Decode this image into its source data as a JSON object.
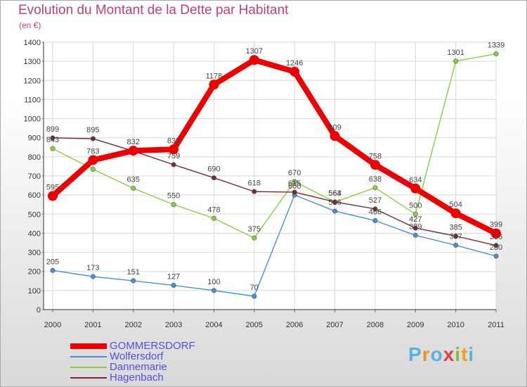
{
  "chart_data": {
    "type": "line",
    "title": "Evolution du Montant de la Dette par Habitant",
    "subtitle": "(en €)",
    "categories": [
      "2000",
      "2001",
      "2002",
      "2003",
      "2004",
      "2005",
      "2006",
      "2007",
      "2008",
      "2009",
      "2010",
      "2011"
    ],
    "ylim": [
      0,
      1400
    ],
    "yticks": [
      0,
      100,
      200,
      300,
      400,
      500,
      600,
      700,
      800,
      900,
      1000,
      1100,
      1200,
      1300,
      1400
    ],
    "grid": true,
    "legend_position": "bottom-left",
    "series": [
      {
        "name": "GOMMERSDORF",
        "color": "#ee0000",
        "values": [
          595,
          783,
          832,
          839,
          1178,
          1307,
          1246,
          909,
          758,
          634,
          504,
          399
        ]
      },
      {
        "name": "Wolfersdorf",
        "color": "#4a90d0",
        "values": [
          205,
          173,
          151,
          127,
          100,
          70,
          600,
          516,
          466,
          389,
          337,
          280
        ]
      },
      {
        "name": "Dannemarie",
        "color": "#88d040",
        "values": [
          843,
          735,
          635,
          550,
          478,
          375,
          670,
          563,
          638,
          500,
          1301,
          1339
        ]
      },
      {
        "name": "Hagenbach",
        "color": "#7a2830",
        "values": [
          899,
          895,
          830,
          759,
          690,
          618,
          615,
          564,
          527,
          427,
          385,
          336
        ]
      }
    ]
  },
  "labels": {
    "GOMMERSDORF": [
      "595",
      "783",
      "832",
      "839",
      "1178",
      "1307",
      "1246",
      "909",
      "758",
      "634",
      "504",
      "399"
    ],
    "Wolfersdorf": [
      "205",
      "173",
      "151",
      "127",
      "100",
      "70",
      "600",
      "516",
      "466",
      "389",
      "337",
      "280"
    ],
    "Dannemarie": [
      "843",
      "",
      "635",
      "550",
      "478",
      "375",
      "670",
      "563",
      "638",
      "500",
      "1301",
      "1339"
    ],
    "Hagenbach": [
      "899",
      "895",
      "",
      "759",
      "690",
      "618",
      "615",
      "564",
      "527",
      "427",
      "385",
      "336"
    ]
  },
  "brand": {
    "name": "Proxiti",
    "letters": [
      "P",
      "r",
      "o",
      "x",
      "i",
      "t",
      "i"
    ],
    "colors": [
      "#5ab0e0",
      "#f09020",
      "#5ab0e0",
      "#e04040",
      "#80c040",
      "#f0a020",
      "#5ab0e0"
    ]
  }
}
